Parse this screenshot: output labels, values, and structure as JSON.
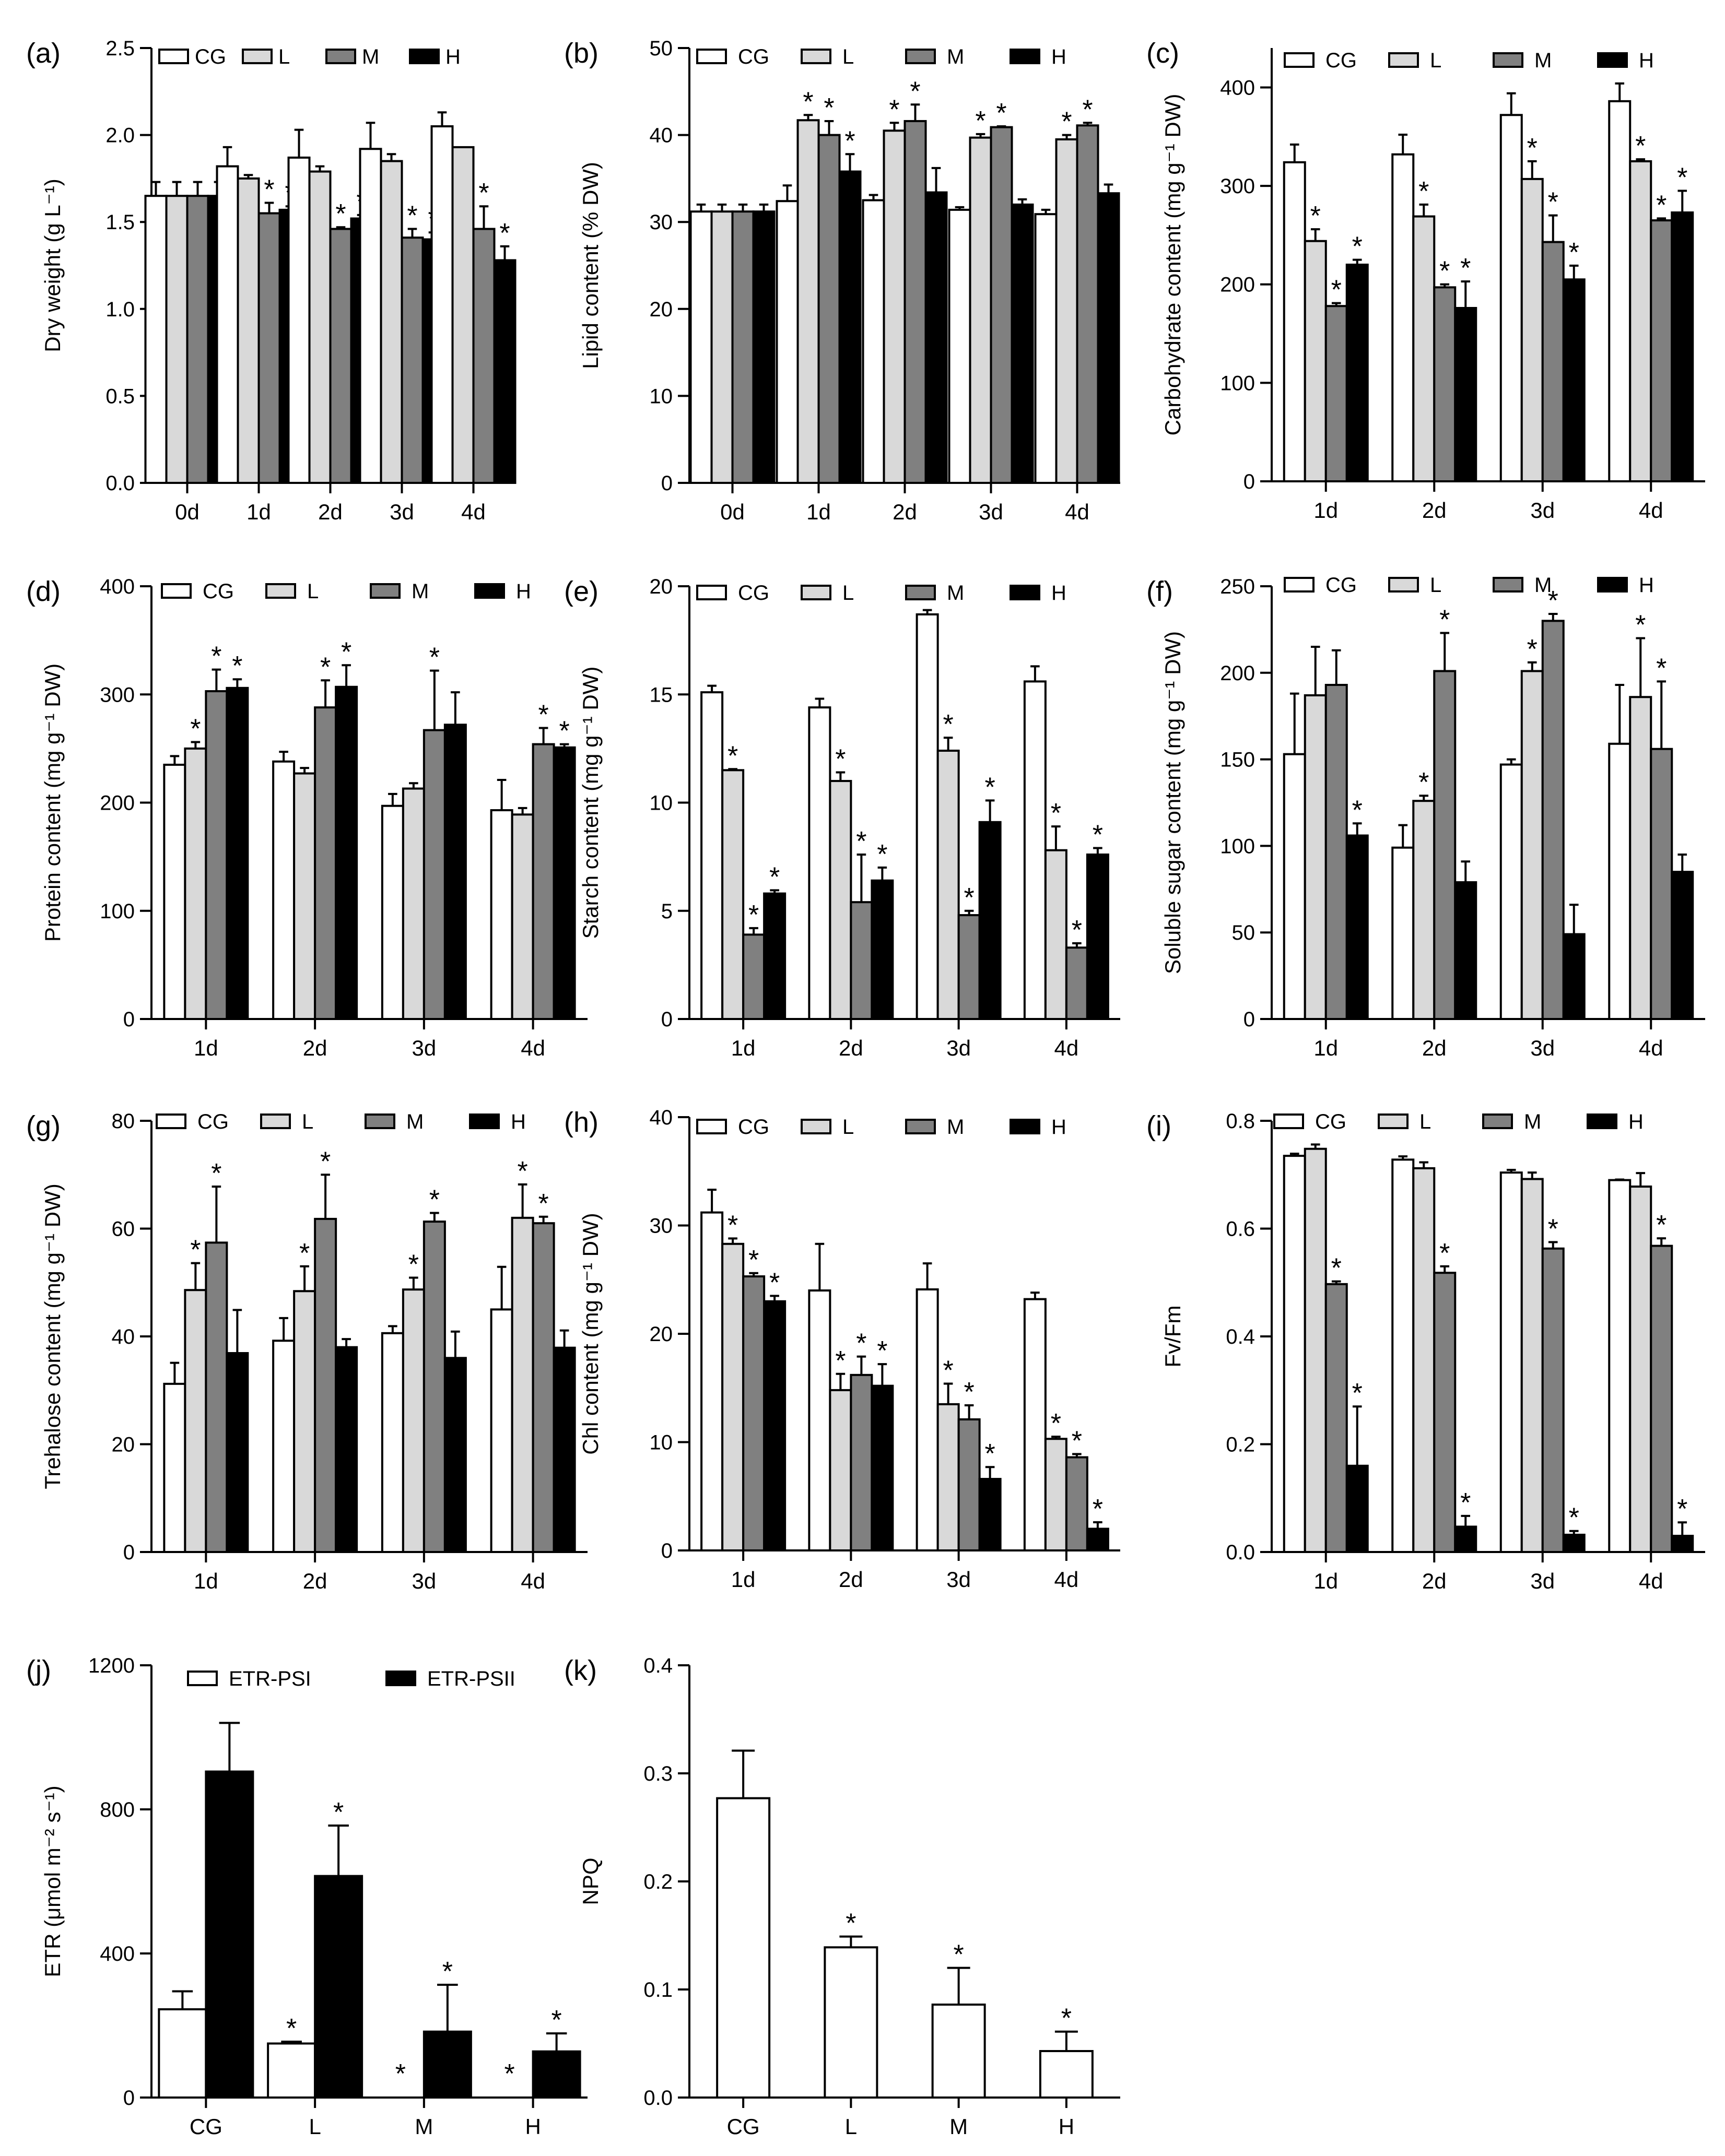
{
  "figure_title": "",
  "colors": {
    "CG": "#ffffff",
    "L": "#d9d9d9",
    "M": "#808080",
    "H": "#000000",
    "PSI": "#ffffff",
    "PSII": "#000000"
  },
  "chart_data": [
    {
      "id": "a",
      "panel_label": "(a)",
      "type": "bar",
      "ylabel": "Dry weight (g L⁻¹)",
      "ylim": [
        0,
        2.5
      ],
      "yticks": [
        "0.0",
        "0.5",
        "1.0",
        "1.5",
        "2.0",
        "2.5"
      ],
      "categories": [
        "0d",
        "1d",
        "2d",
        "3d",
        "4d"
      ],
      "legend_position": "top",
      "series": [
        {
          "name": "CG",
          "values": [
            1.65,
            1.82,
            1.87,
            1.92,
            2.05
          ],
          "errors": [
            0.08,
            0.11,
            0.16,
            0.15,
            0.08
          ],
          "sig": [
            false,
            false,
            false,
            false,
            false
          ]
        },
        {
          "name": "L",
          "values": [
            1.65,
            1.75,
            1.79,
            1.85,
            1.93
          ],
          "errors": [
            0.08,
            0.02,
            0.03,
            0.04,
            0.0
          ],
          "sig": [
            false,
            false,
            false,
            false,
            false
          ]
        },
        {
          "name": "M",
          "values": [
            1.65,
            1.55,
            1.46,
            1.41,
            1.46
          ],
          "errors": [
            0.08,
            0.06,
            0.01,
            0.05,
            0.13
          ],
          "sig": [
            false,
            true,
            true,
            true,
            true
          ]
        },
        {
          "name": "H",
          "values": [
            1.65,
            1.57,
            1.52,
            1.4,
            1.28
          ],
          "errors": [
            0.08,
            0.02,
            0.02,
            0.04,
            0.08
          ],
          "sig": [
            false,
            true,
            true,
            true,
            true
          ]
        }
      ]
    },
    {
      "id": "b",
      "panel_label": "(b)",
      "type": "bar",
      "ylabel": "Lipid content (% DW)",
      "ylim": [
        0,
        50
      ],
      "yticks": [
        "0",
        "10",
        "20",
        "30",
        "40",
        "50"
      ],
      "categories": [
        "0d",
        "1d",
        "2d",
        "3d",
        "4d"
      ],
      "legend_position": "top",
      "series": [
        {
          "name": "CG",
          "values": [
            31.2,
            32.4,
            32.5,
            31.4,
            30.9
          ],
          "errors": [
            0.8,
            1.8,
            0.6,
            0.3,
            0.5
          ],
          "sig": [
            false,
            false,
            false,
            false,
            false
          ]
        },
        {
          "name": "L",
          "values": [
            31.2,
            41.7,
            40.5,
            39.7,
            39.5
          ],
          "errors": [
            0.8,
            0.6,
            0.9,
            0.4,
            0.5
          ],
          "sig": [
            false,
            true,
            true,
            true,
            true
          ]
        },
        {
          "name": "M",
          "values": [
            31.2,
            40.0,
            41.6,
            40.9,
            41.1
          ],
          "errors": [
            0.8,
            1.6,
            1.9,
            0.1,
            0.3
          ],
          "sig": [
            false,
            true,
            true,
            true,
            true
          ]
        },
        {
          "name": "H",
          "values": [
            31.2,
            35.8,
            33.4,
            32.0,
            33.3
          ],
          "errors": [
            0.8,
            2.0,
            2.8,
            0.6,
            1.0
          ],
          "sig": [
            false,
            true,
            false,
            false,
            false
          ]
        }
      ]
    },
    {
      "id": "c",
      "panel_label": "(c)",
      "type": "bar",
      "ylabel": "Carbohydrate content (mg g⁻¹ DW)",
      "ylim": [
        0,
        440
      ],
      "yticks": [
        "0",
        "100",
        "200",
        "300",
        "400"
      ],
      "categories": [
        "1d",
        "2d",
        "3d",
        "4d"
      ],
      "legend_position": "top",
      "series": [
        {
          "name": "CG",
          "values": [
            324,
            332,
            372,
            386
          ],
          "errors": [
            18,
            20,
            22,
            18
          ],
          "sig": [
            false,
            false,
            false,
            false
          ]
        },
        {
          "name": "L",
          "values": [
            244,
            269,
            307,
            325
          ],
          "errors": [
            12,
            12,
            18,
            2
          ],
          "sig": [
            true,
            true,
            true,
            true
          ]
        },
        {
          "name": "M",
          "values": [
            178,
            197,
            243,
            265
          ],
          "errors": [
            3,
            3,
            27,
            2
          ],
          "sig": [
            true,
            true,
            true,
            true
          ]
        },
        {
          "name": "H",
          "values": [
            220,
            176,
            205,
            273
          ],
          "errors": [
            5,
            27,
            14,
            22
          ],
          "sig": [
            true,
            true,
            true,
            true
          ]
        }
      ]
    },
    {
      "id": "d",
      "panel_label": "(d)",
      "type": "bar",
      "ylabel": "Protein content (mg g⁻¹ DW)",
      "ylim": [
        0,
        400
      ],
      "yticks": [
        "0",
        "100",
        "200",
        "300",
        "400"
      ],
      "categories": [
        "1d",
        "2d",
        "3d",
        "4d"
      ],
      "legend_position": "top",
      "series": [
        {
          "name": "CG",
          "values": [
            235,
            238,
            197,
            193
          ],
          "errors": [
            8,
            9,
            11,
            28
          ],
          "sig": [
            false,
            false,
            false,
            false
          ]
        },
        {
          "name": "L",
          "values": [
            250,
            227,
            213,
            189
          ],
          "errors": [
            6,
            5,
            5,
            6
          ],
          "sig": [
            true,
            false,
            false,
            false
          ]
        },
        {
          "name": "M",
          "values": [
            303,
            288,
            267,
            254
          ],
          "errors": [
            20,
            25,
            55,
            15
          ],
          "sig": [
            true,
            true,
            true,
            true
          ]
        },
        {
          "name": "H",
          "values": [
            306,
            307,
            272,
            251
          ],
          "errors": [
            8,
            20,
            30,
            3
          ],
          "sig": [
            true,
            true,
            false,
            true
          ]
        }
      ]
    },
    {
      "id": "e",
      "panel_label": "(e)",
      "type": "bar",
      "ylabel": "Starch content (mg g⁻¹ DW)",
      "ylim": [
        0,
        20
      ],
      "yticks": [
        "0",
        "5",
        "10",
        "15",
        "20"
      ],
      "categories": [
        "1d",
        "2d",
        "3d",
        "4d"
      ],
      "legend_position": "top",
      "series": [
        {
          "name": "CG",
          "values": [
            15.1,
            14.4,
            18.7,
            15.6
          ],
          "errors": [
            0.3,
            0.4,
            0.2,
            0.7
          ],
          "sig": [
            false,
            false,
            false,
            false
          ]
        },
        {
          "name": "L",
          "values": [
            11.5,
            11.0,
            12.4,
            7.8
          ],
          "errors": [
            0.05,
            0.4,
            0.6,
            1.1
          ],
          "sig": [
            true,
            true,
            true,
            true
          ]
        },
        {
          "name": "M",
          "values": [
            3.9,
            5.4,
            4.8,
            3.3
          ],
          "errors": [
            0.3,
            2.2,
            0.2,
            0.2
          ],
          "sig": [
            true,
            true,
            true,
            true
          ]
        },
        {
          "name": "H",
          "values": [
            5.8,
            6.4,
            9.1,
            7.6
          ],
          "errors": [
            0.15,
            0.6,
            1.0,
            0.3
          ],
          "sig": [
            true,
            true,
            true,
            true
          ]
        }
      ]
    },
    {
      "id": "f",
      "panel_label": "(f)",
      "type": "bar",
      "ylabel": "Soluble sugar content (mg g⁻¹ DW)",
      "ylim": [
        0,
        250
      ],
      "yticks": [
        "0",
        "50",
        "100",
        "150",
        "200",
        "250"
      ],
      "categories": [
        "1d",
        "2d",
        "3d",
        "4d"
      ],
      "legend_position": "top",
      "series": [
        {
          "name": "CG",
          "values": [
            153,
            99,
            147,
            159
          ],
          "errors": [
            35,
            13,
            3,
            34
          ],
          "sig": [
            false,
            false,
            false,
            false
          ]
        },
        {
          "name": "L",
          "values": [
            187,
            126,
            201,
            186
          ],
          "errors": [
            28,
            3,
            5,
            34
          ],
          "sig": [
            false,
            true,
            true,
            true
          ]
        },
        {
          "name": "M",
          "values": [
            193,
            201,
            230,
            156
          ],
          "errors": [
            20,
            22,
            4,
            39
          ],
          "sig": [
            false,
            true,
            true,
            true
          ]
        },
        {
          "name": "H",
          "values": [
            106,
            79,
            49,
            85
          ],
          "errors": [
            7,
            12,
            17,
            10
          ],
          "sig": [
            true,
            false,
            false,
            false
          ]
        }
      ]
    },
    {
      "id": "g",
      "panel_label": "(g)",
      "type": "bar",
      "ylabel": "Trehalose content (mg g⁻¹ DW)",
      "ylim": [
        0,
        80
      ],
      "yticks": [
        "0",
        "20",
        "40",
        "60",
        "80"
      ],
      "categories": [
        "1d",
        "2d",
        "3d",
        "4d"
      ],
      "legend_position": "top",
      "series": [
        {
          "name": "CG",
          "values": [
            31.2,
            39.2,
            40.6,
            45.0
          ],
          "errors": [
            3.9,
            4.2,
            1.3,
            7.9
          ],
          "sig": [
            false,
            false,
            false,
            false
          ]
        },
        {
          "name": "L",
          "values": [
            48.6,
            48.4,
            48.7,
            62.0
          ],
          "errors": [
            5.0,
            4.6,
            2.2,
            6.2
          ],
          "sig": [
            true,
            true,
            true,
            true
          ]
        },
        {
          "name": "M",
          "values": [
            57.4,
            61.8,
            61.3,
            61.0
          ],
          "errors": [
            10.4,
            8.2,
            1.6,
            1.2
          ],
          "sig": [
            true,
            true,
            true,
            true
          ]
        },
        {
          "name": "H",
          "values": [
            36.9,
            38.0,
            36.0,
            37.9
          ],
          "errors": [
            8.0,
            1.5,
            4.9,
            3.2
          ],
          "sig": [
            false,
            false,
            false,
            false
          ]
        }
      ]
    },
    {
      "id": "h",
      "panel_label": "(h)",
      "type": "bar",
      "ylabel": "Chl content (mg g⁻¹ DW)",
      "ylim": [
        0,
        40
      ],
      "yticks": [
        "0",
        "10",
        "20",
        "30",
        "40"
      ],
      "categories": [
        "1d",
        "2d",
        "3d",
        "4d"
      ],
      "legend_position": "top",
      "series": [
        {
          "name": "CG",
          "values": [
            31.2,
            24.0,
            24.1,
            23.2
          ],
          "errors": [
            2.1,
            4.3,
            2.4,
            0.6
          ],
          "sig": [
            false,
            false,
            false,
            false
          ]
        },
        {
          "name": "L",
          "values": [
            28.3,
            14.8,
            13.5,
            10.3
          ],
          "errors": [
            0.5,
            1.5,
            1.9,
            0.2
          ],
          "sig": [
            true,
            true,
            true,
            true
          ]
        },
        {
          "name": "M",
          "values": [
            25.3,
            16.2,
            12.1,
            8.6
          ],
          "errors": [
            0.3,
            1.7,
            1.3,
            0.3
          ],
          "sig": [
            true,
            true,
            true,
            true
          ]
        },
        {
          "name": "H",
          "values": [
            23.0,
            15.2,
            6.6,
            2.0
          ],
          "errors": [
            0.5,
            2.0,
            1.1,
            0.6
          ],
          "sig": [
            true,
            true,
            true,
            true
          ]
        }
      ]
    },
    {
      "id": "i",
      "panel_label": "(i)",
      "type": "bar",
      "ylabel": "Fv/Fm",
      "ylim": [
        0,
        0.8
      ],
      "yticks": [
        "0.0",
        "0.2",
        "0.4",
        "0.6",
        "0.8"
      ],
      "categories": [
        "1d",
        "2d",
        "3d",
        "4d"
      ],
      "legend_position": "top",
      "series": [
        {
          "name": "CG",
          "values": [
            0.735,
            0.728,
            0.704,
            0.69
          ],
          "errors": [
            0.004,
            0.006,
            0.005,
            0.001
          ],
          "sig": [
            false,
            false,
            false,
            false
          ]
        },
        {
          "name": "L",
          "values": [
            0.748,
            0.712,
            0.692,
            0.678
          ],
          "errors": [
            0.008,
            0.011,
            0.012,
            0.025
          ],
          "sig": [
            false,
            false,
            false,
            false
          ]
        },
        {
          "name": "M",
          "values": [
            0.497,
            0.518,
            0.563,
            0.568
          ],
          "errors": [
            0.005,
            0.012,
            0.012,
            0.014
          ],
          "sig": [
            true,
            true,
            true,
            true
          ]
        },
        {
          "name": "H",
          "values": [
            0.16,
            0.047,
            0.032,
            0.03
          ],
          "errors": [
            0.11,
            0.02,
            0.007,
            0.025
          ],
          "sig": [
            true,
            true,
            true,
            true
          ]
        }
      ]
    },
    {
      "id": "j",
      "panel_label": "(j)",
      "type": "bar",
      "ylabel": "ETR (μmol m⁻² s⁻¹)",
      "ylim": [
        0,
        1200
      ],
      "yticks": [
        "0",
        "400",
        "800",
        "1200"
      ],
      "categories": [
        "CG",
        "L",
        "M",
        "H"
      ],
      "legend_position": "top",
      "series": [
        {
          "name": "ETR-PSI",
          "values": [
            245,
            150,
            0,
            0
          ],
          "errors": [
            50,
            5,
            0,
            0
          ],
          "sig": [
            false,
            true,
            true,
            true
          ]
        },
        {
          "name": "ETR-PSII",
          "values": [
            905,
            615,
            183,
            128
          ],
          "errors": [
            135,
            140,
            130,
            50
          ],
          "sig": [
            false,
            true,
            true,
            true
          ]
        }
      ]
    },
    {
      "id": "k",
      "panel_label": "(k)",
      "type": "bar",
      "ylabel": "NPQ",
      "ylim": [
        0,
        0.4
      ],
      "yticks": [
        "0.0",
        "0.1",
        "0.2",
        "0.3",
        "0.4"
      ],
      "categories": [
        "CG",
        "L",
        "M",
        "H"
      ],
      "legend_position": "none",
      "series": [
        {
          "name": "NPQ",
          "values": [
            0.277,
            0.139,
            0.086,
            0.043
          ],
          "errors": [
            0.044,
            0.01,
            0.034,
            0.018
          ],
          "sig": [
            false,
            true,
            true,
            true
          ]
        }
      ]
    }
  ]
}
